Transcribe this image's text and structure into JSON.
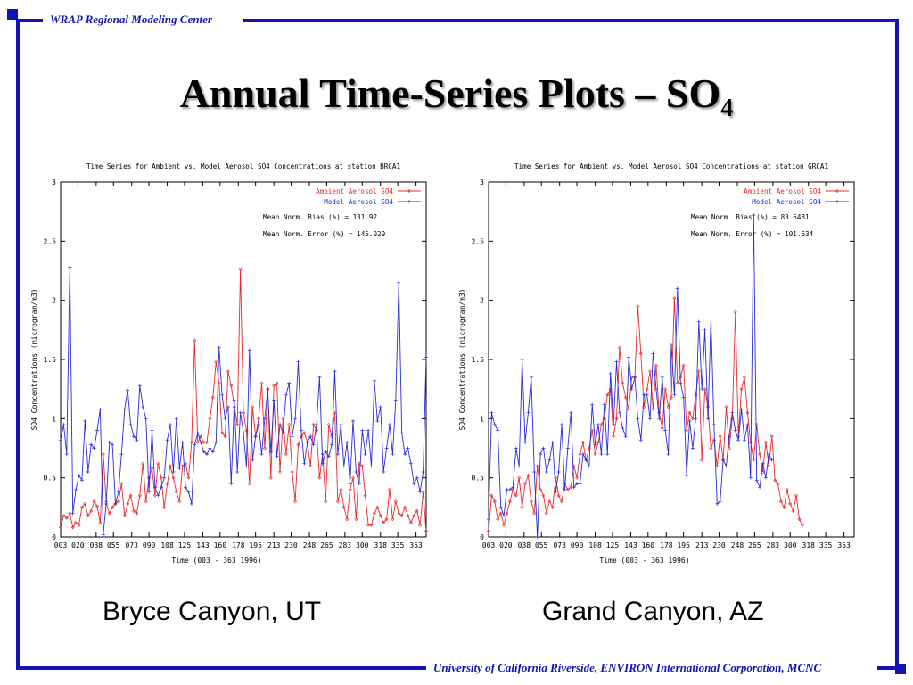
{
  "header": {
    "org_label": "WRAP Regional Modeling Center"
  },
  "slide": {
    "title_main": "Annual Time-Series Plots – SO",
    "title_sub": "4"
  },
  "footer": {
    "affiliations": "University of California Riverside, ENVIRON International Corporation, MCNC"
  },
  "site_labels": [
    "Bryce Canyon, UT",
    "Grand Canyon, AZ"
  ],
  "colors": {
    "frame": "#1414b4",
    "ambient": "#e8282d",
    "model": "#2b2bd8"
  },
  "chart_data": [
    {
      "type": "line",
      "title": "Time Series for Ambient vs. Model Aerosol SO4 Concentrations at station BRCA1",
      "xlabel": "Time    (003 - 363 1996)",
      "ylabel": "SO4 Concentrations (microgram/m3)",
      "xlim": [
        3,
        363
      ],
      "ylim": [
        0,
        3
      ],
      "x_ticks": [
        "003",
        "020",
        "038",
        "055",
        "073",
        "090",
        "108",
        "125",
        "143",
        "160",
        "178",
        "195",
        "213",
        "230",
        "248",
        "265",
        "283",
        "300",
        "318",
        "335",
        "353"
      ],
      "y_ticks": [
        "0",
        "0.5",
        "1",
        "1.5",
        "2",
        "2.5",
        "3"
      ],
      "stats": [
        "Mean Norm. Bias (%) = 131.92",
        "Mean Norm. Error (%) = 145.029"
      ],
      "legend_position": "top-right",
      "series": [
        {
          "name": "Ambient Aerosol SO4",
          "x_start": 3,
          "x_step": 3,
          "values": [
            0.08,
            0.18,
            0.16,
            0.2,
            0.08,
            0.12,
            0.1,
            0.25,
            0.28,
            0.18,
            0.22,
            0.3,
            0.26,
            0.12,
            0.7,
            0.28,
            0.2,
            0.25,
            0.28,
            0.3,
            0.45,
            0.18,
            0.28,
            0.35,
            0.22,
            0.2,
            0.35,
            0.62,
            0.3,
            0.5,
            0.58,
            0.35,
            0.62,
            0.5,
            0.25,
            0.45,
            0.6,
            0.5,
            0.38,
            0.3,
            0.6,
            0.62,
            0.5,
            0.8,
            1.66,
            0.8,
            0.85,
            0.8,
            0.8,
            1.0,
            1.18,
            1.48,
            1.3,
            0.88,
            0.85,
            1.4,
            1.28,
            1.1,
            0.95,
            2.26,
            1.05,
            0.9,
            0.45,
            1.1,
            0.85,
            1.0,
            1.3,
            0.75,
            1.25,
            0.5,
            1.28,
            1.3,
            0.55,
            1.0,
            0.7,
            0.95,
            0.55,
            0.3,
            0.78,
            0.85,
            0.88,
            0.8,
            0.6,
            0.95,
            0.9,
            0.5,
            0.7,
            0.3,
            0.95,
            0.85,
            1.05,
            0.3,
            0.4,
            0.25,
            0.15,
            0.4,
            0.5,
            0.15,
            0.62,
            0.6,
            0.35,
            0.1,
            0.1,
            0.2,
            0.25,
            0.18,
            0.12,
            0.15,
            0.4,
            0.15,
            0.3,
            0.2,
            0.18,
            0.25,
            0.18,
            0.12,
            0.18,
            0.22,
            0.1,
            0.38,
            0.05
          ]
        },
        {
          "name": "Model Aerosol SO4",
          "x_start": 3,
          "x_step": 3,
          "values": [
            0.82,
            0.95,
            0.7,
            2.28,
            0.2,
            0.4,
            0.52,
            0.48,
            0.98,
            0.55,
            0.78,
            0.75,
            0.9,
            1.08,
            0.02,
            0.3,
            0.8,
            0.78,
            0.28,
            0.38,
            0.7,
            1.08,
            1.24,
            0.95,
            0.85,
            0.82,
            1.28,
            1.1,
            1.0,
            0.38,
            0.9,
            0.42,
            0.35,
            0.42,
            0.5,
            0.82,
            0.95,
            0.55,
            1.0,
            0.58,
            0.8,
            0.42,
            0.38,
            0.28,
            0.78,
            0.88,
            0.8,
            0.72,
            0.7,
            0.75,
            0.72,
            0.8,
            1.6,
            1.2,
            1.0,
            1.1,
            0.45,
            1.15,
            0.55,
            1.05,
            0.88,
            0.6,
            1.58,
            0.65,
            0.85,
            0.95,
            0.7,
            1.0,
            1.25,
            0.72,
            1.15,
            0.68,
            0.95,
            0.88,
            1.2,
            1.3,
            0.85,
            1.0,
            1.48,
            0.9,
            0.62,
            0.8,
            0.85,
            0.78,
            0.95,
            1.35,
            0.62,
            0.72,
            0.68,
            0.78,
            1.4,
            0.7,
            0.95,
            0.6,
            0.8,
            0.45,
            0.98,
            0.55,
            0.45,
            0.9,
            0.7,
            0.9,
            0.6,
            1.32,
            0.98,
            1.1,
            0.55,
            0.75,
            0.95,
            0.7,
            1.15,
            2.15,
            0.88,
            0.7,
            0.75,
            0.62,
            0.45,
            0.5,
            0.38,
            0.55,
            1.52
          ]
        }
      ]
    },
    {
      "type": "line",
      "title": "Time Series for Ambient vs. Model Aerosol SO4 Concentrations at station GRCA1",
      "xlabel": "Time    (003 - 363 1996)",
      "ylabel": "SO4 Concentrations (microgram/m3)",
      "xlim": [
        3,
        363
      ],
      "ylim": [
        0,
        3
      ],
      "x_ticks": [
        "003",
        "020",
        "038",
        "055",
        "073",
        "090",
        "108",
        "125",
        "143",
        "160",
        "178",
        "195",
        "213",
        "230",
        "248",
        "265",
        "283",
        "300",
        "318",
        "335",
        "353"
      ],
      "y_ticks": [
        "0",
        "0.5",
        "1",
        "1.5",
        "2",
        "2.5",
        "3"
      ],
      "stats": [
        "Mean Norm. Bias (%) = 83.6481",
        "Mean Norm. Error (%) = 101.634"
      ],
      "legend_position": "top-right",
      "series": [
        {
          "name": "Ambient Aerosol SO4",
          "x_start": 3,
          "x_step": 3,
          "values": [
            0.05,
            0.35,
            0.3,
            0.15,
            0.2,
            0.1,
            0.2,
            0.3,
            0.4,
            0.35,
            0.5,
            0.25,
            0.45,
            0.52,
            0.3,
            0.2,
            0.6,
            0.4,
            0.35,
            0.2,
            0.3,
            0.25,
            0.5,
            0.35,
            0.3,
            0.45,
            0.4,
            0.42,
            0.6,
            0.5,
            0.7,
            0.8,
            0.65,
            0.75,
            0.9,
            0.7,
            0.8,
            0.95,
            1.0,
            1.2,
            1.25,
            0.85,
            1.0,
            1.6,
            1.3,
            1.18,
            1.08,
            1.35,
            1.35,
            1.95,
            1.55,
            1.1,
            1.25,
            1.4,
            1.08,
            1.45,
            1.05,
            0.92,
            1.25,
            1.1,
            1.18,
            2.02,
            1.3,
            1.35,
            1.45,
            0.9,
            1.05,
            1.0,
            1.2,
            1.4,
            0.65,
            1.25,
            1.1,
            0.75,
            0.82,
            0.6,
            0.85,
            0.65,
            1.1,
            0.75,
            1.0,
            1.9,
            0.85,
            1.25,
            1.35,
            1.05,
            0.8,
            0.65,
            0.95,
            0.7,
            0.55,
            0.8,
            0.6,
            0.85,
            0.48,
            0.45,
            0.3,
            0.25,
            0.4,
            0.28,
            0.22,
            0.35,
            0.15,
            0.1
          ]
        },
        {
          "name": "Model Aerosol SO4",
          "x_start": 3,
          "x_step": 3,
          "values": [
            0.15,
            1.05,
            0.95,
            0.9,
            0.25,
            0.18,
            0.4,
            0.4,
            0.42,
            0.75,
            0.6,
            1.5,
            0.8,
            1.05,
            1.35,
            0.55,
            0.0,
            0.7,
            0.75,
            0.55,
            0.65,
            0.8,
            0.38,
            0.55,
            0.95,
            0.4,
            0.75,
            1.05,
            0.42,
            0.45,
            0.45,
            0.7,
            0.65,
            0.6,
            1.12,
            0.78,
            0.95,
            0.7,
            1.12,
            0.7,
            1.38,
            0.95,
            1.48,
            1.05,
            0.92,
            0.85,
            1.52,
            1.25,
            1.35,
            1.0,
            0.82,
            1.2,
            1.2,
            1.0,
            1.55,
            1.25,
            1.0,
            1.35,
            0.9,
            0.7,
            1.62,
            1.2,
            2.1,
            1.3,
            1.18,
            0.52,
            0.98,
            0.75,
            1.0,
            1.82,
            1.25,
            1.75,
            1.0,
            1.85,
            0.95,
            0.28,
            0.3,
            0.65,
            0.6,
            0.85,
            1.05,
            0.9,
            0.82,
            1.08,
            0.82,
            0.95,
            0.5,
            2.72,
            0.48,
            0.42,
            0.62,
            0.5,
            0.7,
            0.65
          ]
        }
      ]
    }
  ]
}
